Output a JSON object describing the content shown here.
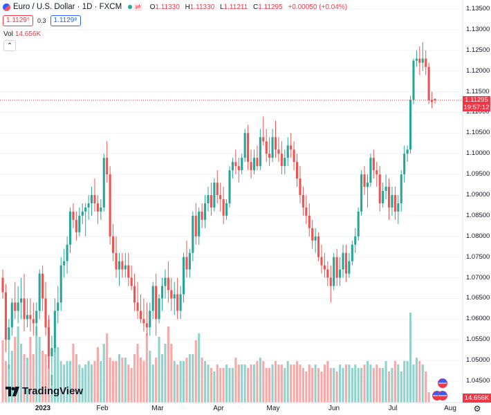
{
  "header": {
    "symbol_title": "Euro / U.S. Dollar · 1D · FXCM",
    "ohlc": {
      "open_label": "O",
      "open": "1.11330",
      "high_label": "H",
      "high": "1.11330",
      "low_label": "L",
      "low": "1.11211",
      "close_label": "C",
      "close": "1.11295",
      "change": "+0.00050 (+0.04%)"
    },
    "sell_price": "1.1129⁵",
    "spread": "0.3",
    "buy_price": "1.1129⁸",
    "volume_label": "Vol",
    "volume_value": "14.656K",
    "collapse_glyph": "⌃"
  },
  "price_axis": {
    "ticks": [
      "1.13500",
      "1.13000",
      "1.12500",
      "1.12000",
      "1.11500",
      "1.11000",
      "1.10500",
      "1.10000",
      "1.09500",
      "1.09000",
      "1.08500",
      "1.08000",
      "1.07500",
      "1.07000",
      "1.06500",
      "1.06000",
      "1.05500",
      "1.05000",
      "1.04500"
    ],
    "last_price": "1.11295",
    "countdown": "19:57:12",
    "volume_tag": "14.656K"
  },
  "time_axis": {
    "ticks": [
      {
        "label": "2023",
        "bold": true
      },
      {
        "label": "Feb",
        "bold": false
      },
      {
        "label": "Mar",
        "bold": false
      },
      {
        "label": "Apr",
        "bold": false
      },
      {
        "label": "May",
        "bold": false
      },
      {
        "label": "Jun",
        "bold": false
      },
      {
        "label": "Jul",
        "bold": false
      },
      {
        "label": "Aug",
        "bold": false
      }
    ]
  },
  "logo": {
    "text": "TradingView",
    "icon": "tradingview-logo-icon"
  },
  "colors": {
    "up": "#26a69a",
    "down": "#ef5350",
    "up_vol": "#92d2cc",
    "down_vol": "#f7a9a7",
    "last_line": "#f23645",
    "grid": "#f0f3fa"
  },
  "chart_data": {
    "type": "candlestick",
    "title": "Euro / U.S. Dollar · 1D · FXCM",
    "ylim": [
      1.043,
      1.137
    ],
    "x_axis_labels": [
      "2023",
      "Feb",
      "Mar",
      "Apr",
      "May",
      "Jun",
      "Jul",
      "Aug"
    ],
    "candles_ohlc": [
      [
        1.07,
        1.072,
        1.065,
        1.0665
      ],
      [
        1.0665,
        1.0685,
        1.052,
        1.055
      ],
      [
        1.055,
        1.06,
        1.048,
        1.058
      ],
      [
        1.058,
        1.065,
        1.056,
        1.064
      ],
      [
        1.064,
        1.069,
        1.06,
        1.062
      ],
      [
        1.062,
        1.068,
        1.059,
        1.064
      ],
      [
        1.064,
        1.07,
        1.06,
        1.065
      ],
      [
        1.065,
        1.071,
        1.057,
        1.06
      ],
      [
        1.06,
        1.065,
        1.058,
        1.061
      ],
      [
        1.061,
        1.065,
        1.057,
        1.06
      ],
      [
        1.06,
        1.064,
        1.056,
        1.059
      ],
      [
        1.059,
        1.064,
        1.056,
        1.062
      ],
      [
        1.062,
        1.072,
        1.06,
        1.071
      ],
      [
        1.071,
        1.073,
        1.062,
        1.065
      ],
      [
        1.065,
        1.069,
        1.056,
        1.058
      ],
      [
        1.058,
        1.061,
        1.048,
        1.051
      ],
      [
        1.051,
        1.056,
        1.044,
        1.053
      ],
      [
        1.053,
        1.065,
        1.052,
        1.062
      ],
      [
        1.062,
        1.068,
        1.059,
        1.064
      ],
      [
        1.064,
        1.075,
        1.062,
        1.073
      ],
      [
        1.073,
        1.077,
        1.07,
        1.074
      ],
      [
        1.074,
        1.08,
        1.071,
        1.078
      ],
      [
        1.078,
        1.087,
        1.076,
        1.086
      ],
      [
        1.086,
        1.088,
        1.082,
        1.084
      ],
      [
        1.084,
        1.086,
        1.079,
        1.081
      ],
      [
        1.081,
        1.087,
        1.08,
        1.085
      ],
      [
        1.085,
        1.088,
        1.083,
        1.086
      ],
      [
        1.086,
        1.088,
        1.08,
        1.087
      ],
      [
        1.087,
        1.09,
        1.084,
        1.088
      ],
      [
        1.088,
        1.092,
        1.085,
        1.09
      ],
      [
        1.09,
        1.094,
        1.086,
        1.088
      ],
      [
        1.088,
        1.09,
        1.083,
        1.086
      ],
      [
        1.086,
        1.089,
        1.084,
        1.087
      ],
      [
        1.087,
        1.1,
        1.086,
        1.099
      ],
      [
        1.099,
        1.103,
        1.093,
        1.095
      ],
      [
        1.095,
        1.097,
        1.078,
        1.08
      ],
      [
        1.08,
        1.083,
        1.074,
        1.076
      ],
      [
        1.076,
        1.08,
        1.07,
        1.072
      ],
      [
        1.072,
        1.076,
        1.068,
        1.074
      ],
      [
        1.074,
        1.076,
        1.07,
        1.072
      ],
      [
        1.072,
        1.076,
        1.07,
        1.073
      ],
      [
        1.073,
        1.076,
        1.068,
        1.07
      ],
      [
        1.07,
        1.073,
        1.067,
        1.068
      ],
      [
        1.068,
        1.071,
        1.062,
        1.064
      ],
      [
        1.064,
        1.069,
        1.06,
        1.062
      ],
      [
        1.062,
        1.066,
        1.059,
        1.06
      ],
      [
        1.06,
        1.065,
        1.057,
        1.059
      ],
      [
        1.059,
        1.064,
        1.056,
        1.058
      ],
      [
        1.058,
        1.064,
        1.056,
        1.062
      ],
      [
        1.062,
        1.069,
        1.06,
        1.068
      ],
      [
        1.068,
        1.071,
        1.056,
        1.06
      ],
      [
        1.06,
        1.066,
        1.059,
        1.065
      ],
      [
        1.065,
        1.07,
        1.062,
        1.068
      ],
      [
        1.068,
        1.072,
        1.065,
        1.07
      ],
      [
        1.07,
        1.074,
        1.064,
        1.067
      ],
      [
        1.067,
        1.07,
        1.062,
        1.065
      ],
      [
        1.065,
        1.069,
        1.061,
        1.066
      ],
      [
        1.066,
        1.07,
        1.06,
        1.062
      ],
      [
        1.062,
        1.068,
        1.06,
        1.066
      ],
      [
        1.066,
        1.076,
        1.064,
        1.075
      ],
      [
        1.075,
        1.079,
        1.07,
        1.072
      ],
      [
        1.072,
        1.077,
        1.07,
        1.076
      ],
      [
        1.076,
        1.086,
        1.074,
        1.085
      ],
      [
        1.085,
        1.088,
        1.078,
        1.08
      ],
      [
        1.08,
        1.087,
        1.078,
        1.086
      ],
      [
        1.086,
        1.088,
        1.082,
        1.084
      ],
      [
        1.084,
        1.09,
        1.082,
        1.088
      ],
      [
        1.088,
        1.092,
        1.086,
        1.09
      ],
      [
        1.09,
        1.093,
        1.085,
        1.087
      ],
      [
        1.087,
        1.094,
        1.086,
        1.093
      ],
      [
        1.093,
        1.096,
        1.088,
        1.09
      ],
      [
        1.09,
        1.093,
        1.086,
        1.089
      ],
      [
        1.089,
        1.092,
        1.083,
        1.085
      ],
      [
        1.085,
        1.089,
        1.084,
        1.088
      ],
      [
        1.088,
        1.097,
        1.087,
        1.096
      ],
      [
        1.096,
        1.099,
        1.094,
        1.098
      ],
      [
        1.098,
        1.101,
        1.095,
        1.097
      ],
      [
        1.097,
        1.099,
        1.093,
        1.096
      ],
      [
        1.096,
        1.1,
        1.095,
        1.099
      ],
      [
        1.099,
        1.106,
        1.098,
        1.105
      ],
      [
        1.105,
        1.107,
        1.096,
        1.098
      ],
      [
        1.098,
        1.101,
        1.094,
        1.096
      ],
      [
        1.096,
        1.101,
        1.095,
        1.099
      ],
      [
        1.099,
        1.102,
        1.096,
        1.097
      ],
      [
        1.097,
        1.106,
        1.096,
        1.104
      ],
      [
        1.104,
        1.109,
        1.102,
        1.103
      ],
      [
        1.103,
        1.106,
        1.098,
        1.1
      ],
      [
        1.1,
        1.104,
        1.097,
        1.099
      ],
      [
        1.099,
        1.106,
        1.098,
        1.104
      ],
      [
        1.104,
        1.108,
        1.099,
        1.101
      ],
      [
        1.101,
        1.104,
        1.098,
        1.1
      ],
      [
        1.1,
        1.103,
        1.095,
        1.097
      ],
      [
        1.097,
        1.101,
        1.095,
        1.099
      ],
      [
        1.099,
        1.104,
        1.097,
        1.102
      ],
      [
        1.102,
        1.105,
        1.099,
        1.101
      ],
      [
        1.101,
        1.103,
        1.096,
        1.098
      ],
      [
        1.098,
        1.1,
        1.092,
        1.094
      ],
      [
        1.094,
        1.097,
        1.088,
        1.09
      ],
      [
        1.09,
        1.092,
        1.085,
        1.087
      ],
      [
        1.087,
        1.09,
        1.083,
        1.085
      ],
      [
        1.085,
        1.088,
        1.08,
        1.082
      ],
      [
        1.082,
        1.084,
        1.077,
        1.079
      ],
      [
        1.079,
        1.082,
        1.076,
        1.08
      ],
      [
        1.08,
        1.081,
        1.074,
        1.075
      ],
      [
        1.075,
        1.078,
        1.071,
        1.073
      ],
      [
        1.073,
        1.076,
        1.07,
        1.072
      ],
      [
        1.072,
        1.074,
        1.068,
        1.07
      ],
      [
        1.07,
        1.073,
        1.064,
        1.068
      ],
      [
        1.068,
        1.076,
        1.067,
        1.075
      ],
      [
        1.075,
        1.077,
        1.068,
        1.07
      ],
      [
        1.07,
        1.075,
        1.068,
        1.072
      ],
      [
        1.072,
        1.078,
        1.07,
        1.076
      ],
      [
        1.076,
        1.078,
        1.069,
        1.071
      ],
      [
        1.071,
        1.076,
        1.07,
        1.074
      ],
      [
        1.074,
        1.079,
        1.073,
        1.078
      ],
      [
        1.078,
        1.082,
        1.076,
        1.08
      ],
      [
        1.08,
        1.087,
        1.079,
        1.086
      ],
      [
        1.086,
        1.096,
        1.085,
        1.095
      ],
      [
        1.095,
        1.097,
        1.09,
        1.092
      ],
      [
        1.092,
        1.095,
        1.087,
        1.093
      ],
      [
        1.093,
        1.1,
        1.092,
        1.099
      ],
      [
        1.099,
        1.101,
        1.094,
        1.096
      ],
      [
        1.096,
        1.098,
        1.092,
        1.095
      ],
      [
        1.095,
        1.097,
        1.086,
        1.088
      ],
      [
        1.088,
        1.093,
        1.087,
        1.091
      ],
      [
        1.091,
        1.095,
        1.089,
        1.092
      ],
      [
        1.092,
        1.094,
        1.084,
        1.087
      ],
      [
        1.087,
        1.092,
        1.085,
        1.09
      ],
      [
        1.09,
        1.092,
        1.084,
        1.086
      ],
      [
        1.086,
        1.09,
        1.083,
        1.088
      ],
      [
        1.088,
        1.096,
        1.086,
        1.095
      ],
      [
        1.095,
        1.102,
        1.093,
        1.1
      ],
      [
        1.1,
        1.102,
        1.098,
        1.101
      ],
      [
        1.101,
        1.114,
        1.1,
        1.113
      ],
      [
        1.113,
        1.123,
        1.112,
        1.1225
      ],
      [
        1.1225,
        1.125,
        1.121,
        1.123
      ],
      [
        1.123,
        1.126,
        1.119,
        1.122
      ],
      [
        1.122,
        1.127,
        1.12,
        1.123
      ],
      [
        1.123,
        1.125,
        1.119,
        1.121
      ],
      [
        1.121,
        1.122,
        1.112,
        1.113
      ],
      [
        1.113,
        1.115,
        1.111,
        1.1125
      ],
      [
        1.1133,
        1.1133,
        1.1121,
        1.11295
      ]
    ],
    "volumes_thousands": [
      90,
      60,
      55,
      75,
      95,
      110,
      85,
      70,
      65,
      95,
      70,
      110,
      95,
      75,
      70,
      120,
      40,
      85,
      80,
      60,
      55,
      60,
      60,
      85,
      70,
      55,
      50,
      55,
      60,
      55,
      60,
      80,
      60,
      85,
      100,
      65,
      60,
      60,
      70,
      65,
      65,
      55,
      50,
      70,
      85,
      65,
      60,
      100,
      75,
      55,
      65,
      95,
      70,
      85,
      110,
      85,
      60,
      55,
      60,
      60,
      65,
      70,
      70,
      90,
      100,
      65,
      60,
      55,
      50,
      45,
      55,
      50,
      50,
      55,
      50,
      50,
      65,
      55,
      55,
      55,
      50,
      55,
      55,
      60,
      65,
      60,
      50,
      50,
      55,
      60,
      55,
      55,
      50,
      60,
      55,
      55,
      60,
      55,
      50,
      45,
      55,
      50,
      55,
      50,
      45,
      55,
      60,
      50,
      50,
      45,
      55,
      50,
      55,
      55,
      50,
      55,
      50,
      50,
      55,
      60,
      55,
      50,
      55,
      50,
      50,
      60,
      45,
      50,
      60,
      55,
      45,
      60,
      60,
      130,
      55,
      65,
      60,
      55,
      45,
      15
    ]
  }
}
